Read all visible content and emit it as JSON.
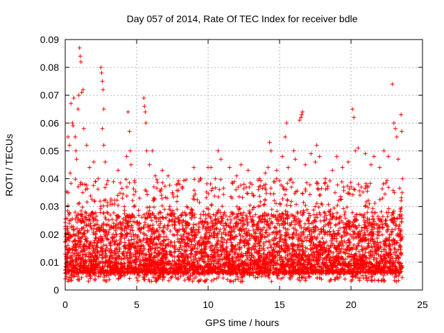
{
  "chart_data": {
    "type": "scatter",
    "title": "Day 057 of 2014, Rate Of TEC Index for receiver bdle",
    "xlabel": "GPS time / hours",
    "ylabel": "ROTI / TECUs",
    "xlim": [
      0,
      25
    ],
    "ylim": [
      0,
      0.09
    ],
    "xticks": [
      0,
      5,
      10,
      15,
      20,
      25
    ],
    "xtick_labels": [
      "0",
      "5",
      "10",
      "15",
      "20",
      "25"
    ],
    "yticks": [
      0,
      0.01,
      0.02,
      0.03,
      0.04,
      0.05,
      0.06,
      0.07,
      0.08,
      0.09
    ],
    "ytick_labels": [
      "0",
      "0.01",
      "0.02",
      "0.03",
      "0.04",
      "0.05",
      "0.06",
      "0.07",
      "0.08",
      "0.09"
    ],
    "grid": true,
    "marker": "+",
    "series": [
      {
        "name": "ROTI",
        "color": "#ff0000",
        "points": [
          [
            0.1,
            0.018
          ],
          [
            0.2,
            0.055
          ],
          [
            0.3,
            0.052
          ],
          [
            0.35,
            0.042
          ],
          [
            0.4,
            0.067
          ],
          [
            0.5,
            0.06
          ],
          [
            0.55,
            0.059
          ],
          [
            0.6,
            0.069
          ],
          [
            0.7,
            0.055
          ],
          [
            0.75,
            0.05
          ],
          [
            0.8,
            0.047
          ],
          [
            0.9,
            0.065
          ],
          [
            0.95,
            0.07
          ],
          [
            1.0,
            0.087
          ],
          [
            1.05,
            0.084
          ],
          [
            1.1,
            0.082
          ],
          [
            1.15,
            0.071
          ],
          [
            1.25,
            0.072
          ],
          [
            1.3,
            0.058
          ],
          [
            1.5,
            0.052
          ],
          [
            1.7,
            0.044
          ],
          [
            2.0,
            0.046
          ],
          [
            2.1,
            0.039
          ],
          [
            2.3,
            0.04
          ],
          [
            2.5,
            0.08
          ],
          [
            2.55,
            0.078
          ],
          [
            2.6,
            0.075
          ],
          [
            2.65,
            0.072
          ],
          [
            2.7,
            0.065
          ],
          [
            2.6,
            0.058
          ],
          [
            2.7,
            0.052
          ],
          [
            2.8,
            0.046
          ],
          [
            2.9,
            0.038
          ],
          [
            3.2,
            0.032
          ],
          [
            3.7,
            0.043
          ],
          [
            4.0,
            0.033
          ],
          [
            4.3,
            0.048
          ],
          [
            4.4,
            0.064
          ],
          [
            4.5,
            0.057
          ],
          [
            4.55,
            0.05
          ],
          [
            4.6,
            0.045
          ],
          [
            4.8,
            0.03
          ],
          [
            5.2,
            0.033
          ],
          [
            5.5,
            0.069
          ],
          [
            5.55,
            0.066
          ],
          [
            5.6,
            0.064
          ],
          [
            5.65,
            0.06
          ],
          [
            5.7,
            0.05
          ],
          [
            5.9,
            0.045
          ],
          [
            6.1,
            0.05
          ],
          [
            6.3,
            0.041
          ],
          [
            6.8,
            0.043
          ],
          [
            7.2,
            0.041
          ],
          [
            7.5,
            0.035
          ],
          [
            8.0,
            0.038
          ],
          [
            8.5,
            0.03
          ],
          [
            9.0,
            0.044
          ],
          [
            9.5,
            0.04
          ],
          [
            10.0,
            0.044
          ],
          [
            10.2,
            0.044
          ],
          [
            10.5,
            0.04
          ],
          [
            10.7,
            0.05
          ],
          [
            10.9,
            0.047
          ],
          [
            11.5,
            0.044
          ],
          [
            12.0,
            0.041
          ],
          [
            12.3,
            0.045
          ],
          [
            12.8,
            0.043
          ],
          [
            13.2,
            0.034
          ],
          [
            13.6,
            0.04
          ],
          [
            14.0,
            0.042
          ],
          [
            14.2,
            0.044
          ],
          [
            14.3,
            0.053
          ],
          [
            14.4,
            0.05
          ],
          [
            14.8,
            0.043
          ],
          [
            15.2,
            0.048
          ],
          [
            15.4,
            0.055
          ],
          [
            15.5,
            0.06
          ],
          [
            15.6,
            0.044
          ],
          [
            16.0,
            0.05
          ],
          [
            16.1,
            0.047
          ],
          [
            16.4,
            0.061
          ],
          [
            16.5,
            0.062
          ],
          [
            16.55,
            0.063
          ],
          [
            16.6,
            0.064
          ],
          [
            16.8,
            0.045
          ],
          [
            17.2,
            0.049
          ],
          [
            17.5,
            0.046
          ],
          [
            17.6,
            0.052
          ],
          [
            17.8,
            0.048
          ],
          [
            18.2,
            0.04
          ],
          [
            18.7,
            0.043
          ],
          [
            19.0,
            0.048
          ],
          [
            19.4,
            0.044
          ],
          [
            19.8,
            0.046
          ],
          [
            20.1,
            0.065
          ],
          [
            20.2,
            0.062
          ],
          [
            20.3,
            0.05
          ],
          [
            20.5,
            0.051
          ],
          [
            21.0,
            0.049
          ],
          [
            21.4,
            0.045
          ],
          [
            21.6,
            0.048
          ],
          [
            22.0,
            0.044
          ],
          [
            22.3,
            0.05
          ],
          [
            22.6,
            0.048
          ],
          [
            22.9,
            0.074
          ],
          [
            23.0,
            0.06
          ],
          [
            23.1,
            0.058
          ],
          [
            23.2,
            0.055
          ],
          [
            23.3,
            0.047
          ],
          [
            23.5,
            0.063
          ],
          [
            23.55,
            0.057
          ],
          [
            23.6,
            0.04
          ]
        ]
      }
    ],
    "dense_band": {
      "x_range": [
        0,
        23.6
      ],
      "typical_range": [
        0.006,
        0.028
      ],
      "min": 0.003
    }
  }
}
